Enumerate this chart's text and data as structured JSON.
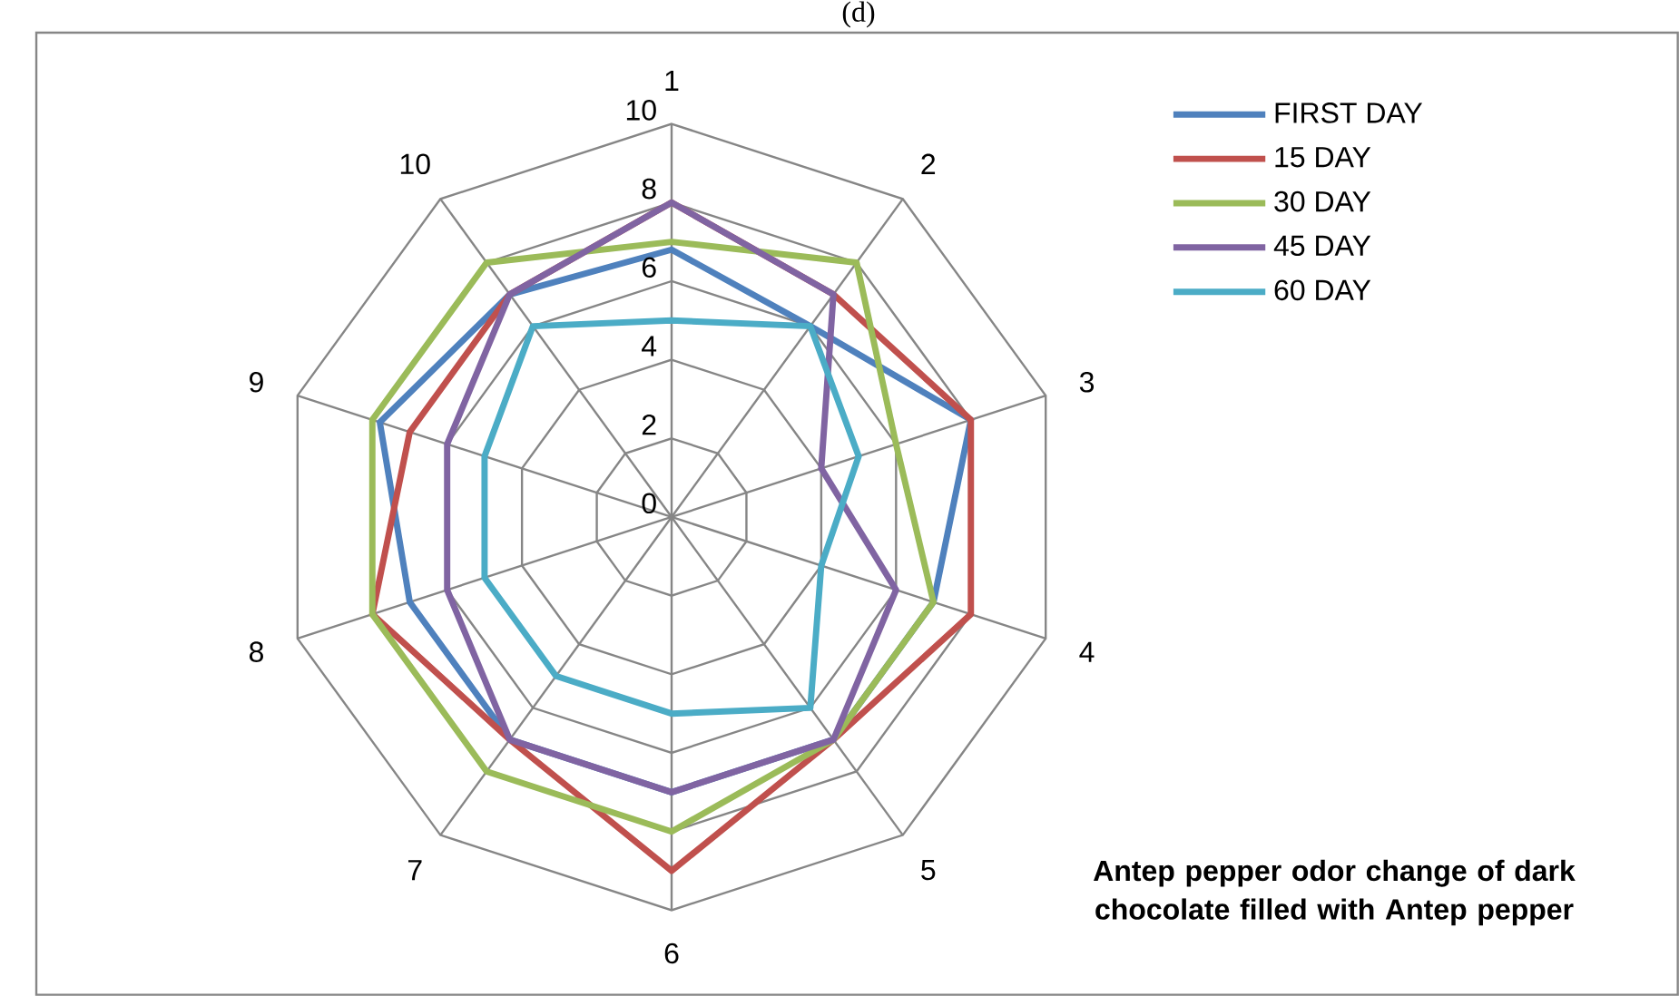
{
  "chart_data": {
    "type": "radar",
    "title": "Antep pepper odor change of dark chocolate filled with Antep pepper",
    "annotations": [
      "(d)"
    ],
    "categories": [
      "1",
      "2",
      "3",
      "4",
      "5",
      "6",
      "7",
      "8",
      "9",
      "10"
    ],
    "series": [
      {
        "name": "FIRST DAY",
        "color": "#4f81bd",
        "values": [
          6.8,
          6,
          8,
          7,
          7,
          7,
          7,
          7,
          7.8,
          7
        ]
      },
      {
        "name": "15 DAY",
        "color": "#c0504d",
        "values": [
          8,
          7,
          8,
          8,
          7,
          9,
          7,
          8,
          7,
          7
        ]
      },
      {
        "name": "30 DAY",
        "color": "#9bbb59",
        "values": [
          7,
          8,
          6,
          7,
          7,
          8,
          8,
          8,
          8,
          8
        ]
      },
      {
        "name": "45 DAY",
        "color": "#8064a2",
        "values": [
          8,
          7,
          4,
          6,
          7,
          7,
          7,
          6,
          6,
          7
        ]
      },
      {
        "name": "60 DAY",
        "color": "#4bacc6",
        "values": [
          5,
          6,
          5,
          4,
          6,
          5,
          5,
          5,
          5,
          6
        ]
      }
    ],
    "ylim": [
      0,
      10
    ],
    "yticks": [
      0,
      2,
      4,
      6,
      8,
      10
    ],
    "grid": true,
    "legend": "top right"
  }
}
